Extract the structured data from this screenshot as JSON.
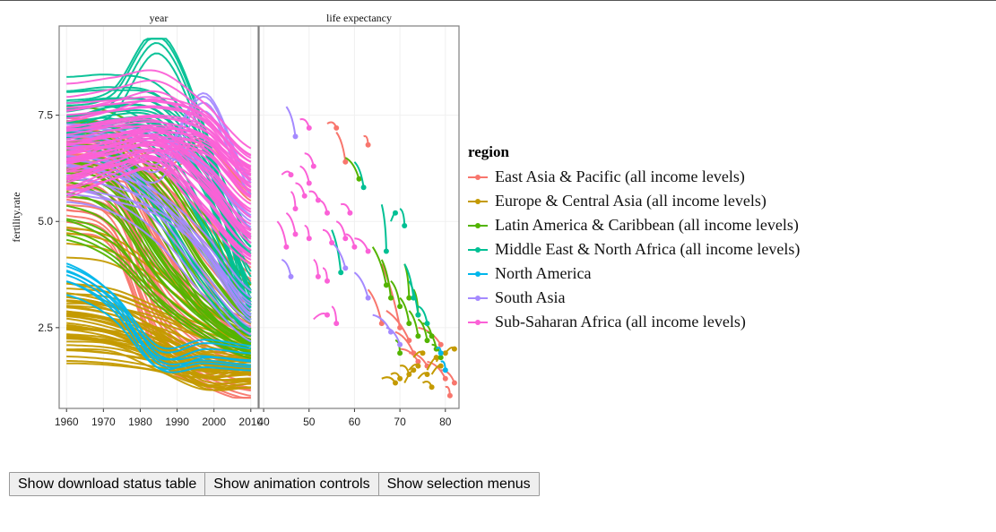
{
  "chart_data": {
    "type": "line",
    "ylabel": "fertility.rate",
    "y_ticks": [
      "2.5",
      "5.0",
      "7.5"
    ],
    "y_tick_values": [
      2.5,
      5.0,
      7.5
    ],
    "ylim": [
      0.6,
      9.6
    ],
    "grid": true,
    "legend_position": "right",
    "legend_title": "region",
    "panels": [
      {
        "name": "year",
        "xlabel": "",
        "xlim": [
          1958,
          2012
        ],
        "x_ticks": [
          "1960",
          "1970",
          "1980",
          "1990",
          "2000",
          "2010"
        ],
        "x_tick_values": [
          1960,
          1970,
          1980,
          1990,
          2000,
          2010
        ]
      },
      {
        "name": "life expectancy",
        "xlabel": "",
        "xlim": [
          39,
          83
        ],
        "x_ticks": [
          "40",
          "50",
          "60",
          "70",
          "80"
        ],
        "x_tick_values": [
          40,
          50,
          60,
          70,
          80
        ]
      }
    ],
    "series": [
      {
        "name": "East Asia & Pacific (all income levels)",
        "color": "#F8766D",
        "year_curves": [
          [
            6.2,
            5.8,
            3.0,
            1.9,
            1.6
          ],
          [
            6.8,
            6.5,
            4.6,
            2.9,
            2.2
          ],
          [
            5.5,
            5.0,
            2.6,
            1.6,
            1.2
          ],
          [
            7.0,
            6.8,
            5.5,
            3.8,
            2.8
          ],
          [
            6.0,
            6.2,
            5.8,
            4.5,
            3.5
          ],
          [
            6.5,
            6.0,
            3.5,
            2.4,
            1.9
          ],
          [
            5.8,
            5.5,
            4.2,
            3.0,
            2.5
          ],
          [
            6.9,
            6.6,
            6.0,
            5.0,
            3.8
          ],
          [
            7.2,
            7.0,
            6.2,
            6.8,
            5.6
          ],
          [
            5.0,
            4.6,
            2.0,
            1.3,
            0.9
          ]
        ],
        "life_points": [
          [
            56,
            7.1,
            58,
            6.4
          ],
          [
            62,
            7.0,
            63,
            6.8
          ],
          [
            66,
            4.0,
            70,
            2.5
          ],
          [
            67,
            2.9,
            72,
            2.2
          ],
          [
            69,
            2.4,
            73,
            1.9
          ],
          [
            70,
            2.0,
            74,
            1.7
          ],
          [
            72,
            1.9,
            76,
            1.6
          ],
          [
            76,
            1.7,
            80,
            1.3
          ],
          [
            79,
            1.5,
            82,
            1.2
          ],
          [
            80,
            1.1,
            81,
            0.9
          ],
          [
            63,
            3.4,
            66,
            2.6
          ],
          [
            54,
            7.3,
            56,
            7.2
          ],
          [
            74,
            2.5,
            79,
            2.1
          ]
        ]
      },
      {
        "name": "Europe & Central Asia (all income levels)",
        "color": "#C49A00",
        "year_curves": [
          [
            2.8,
            2.7,
            2.2,
            1.7,
            1.6
          ],
          [
            2.3,
            2.2,
            1.9,
            1.5,
            1.5
          ],
          [
            3.2,
            3.0,
            2.6,
            2.0,
            1.8
          ],
          [
            2.1,
            2.0,
            1.8,
            1.4,
            1.3
          ],
          [
            2.6,
            2.4,
            2.0,
            1.5,
            1.6
          ],
          [
            3.0,
            2.8,
            2.3,
            1.8,
            1.9
          ],
          [
            2.4,
            2.3,
            1.8,
            1.3,
            1.4
          ],
          [
            2.9,
            2.7,
            2.1,
            1.4,
            1.3
          ],
          [
            3.3,
            3.2,
            2.8,
            2.4,
            2.1
          ],
          [
            2.0,
            1.9,
            1.7,
            1.5,
            1.7
          ],
          [
            2.7,
            2.6,
            2.4,
            2.0,
            1.8
          ],
          [
            4.5,
            4.3,
            3.6,
            2.8,
            2.3
          ],
          [
            2.5,
            2.3,
            1.9,
            1.2,
            1.2
          ]
        ],
        "life_points": [
          [
            68,
            1.4,
            70,
            1.3
          ],
          [
            70,
            1.6,
            72,
            1.4
          ],
          [
            72,
            1.5,
            74,
            1.6
          ],
          [
            74,
            1.3,
            76,
            1.4
          ],
          [
            76,
            1.5,
            78,
            1.8
          ],
          [
            78,
            1.7,
            80,
            1.9
          ],
          [
            80,
            1.9,
            82,
            2.0
          ],
          [
            66,
            1.3,
            69,
            1.2
          ],
          [
            71,
            1.2,
            73,
            1.5
          ],
          [
            75,
            1.2,
            77,
            1.1
          ],
          [
            77,
            1.4,
            79,
            1.6
          ],
          [
            73,
            1.8,
            75,
            1.9
          ]
        ]
      },
      {
        "name": "Latin America & Caribbean (all income levels)",
        "color": "#53B400",
        "year_curves": [
          [
            6.8,
            6.6,
            5.0,
            3.2,
            2.3
          ],
          [
            6.2,
            5.9,
            4.2,
            2.8,
            2.1
          ],
          [
            7.0,
            6.9,
            6.0,
            4.4,
            3.0
          ],
          [
            5.5,
            5.0,
            3.5,
            2.6,
            2.0
          ],
          [
            6.5,
            6.4,
            5.5,
            3.8,
            2.6
          ],
          [
            4.8,
            4.3,
            3.2,
            2.4,
            1.9
          ],
          [
            7.3,
            7.2,
            6.5,
            4.9,
            3.3
          ],
          [
            6.0,
            5.6,
            4.0,
            2.9,
            2.2
          ]
        ],
        "life_points": [
          [
            58,
            6.5,
            61,
            6.0
          ],
          [
            64,
            4.4,
            67,
            3.5
          ],
          [
            66,
            4.1,
            68,
            3.2
          ],
          [
            68,
            3.6,
            70,
            3.0
          ],
          [
            70,
            3.2,
            72,
            2.6
          ],
          [
            72,
            2.9,
            74,
            2.3
          ],
          [
            74,
            2.7,
            76,
            2.2
          ],
          [
            76,
            2.4,
            78,
            2.0
          ],
          [
            71,
            4.0,
            72,
            3.2
          ],
          [
            73,
            3.4,
            74,
            2.8
          ],
          [
            69,
            2.2,
            70,
            1.9
          ],
          [
            77,
            2.1,
            79,
            1.8
          ],
          [
            75,
            2.6,
            77,
            2.3
          ]
        ]
      },
      {
        "name": "Middle East & North Africa (all income levels)",
        "color": "#00C094",
        "year_curves": [
          [
            7.5,
            7.8,
            9.2,
            7.0,
            3.2
          ],
          [
            7.0,
            7.2,
            7.1,
            5.8,
            3.0
          ],
          [
            7.3,
            7.4,
            6.8,
            5.0,
            2.8
          ],
          [
            7.6,
            7.7,
            7.6,
            6.5,
            3.6
          ],
          [
            6.8,
            6.5,
            5.2,
            3.5,
            2.3
          ],
          [
            7.2,
            7.5,
            7.4,
            6.0,
            4.3
          ],
          [
            8.0,
            8.1,
            7.9,
            6.6,
            4.6
          ]
        ],
        "life_points": [
          [
            70,
            5.3,
            71,
            4.9
          ],
          [
            68,
            5.0,
            69,
            5.2
          ],
          [
            71,
            4.0,
            73,
            3.2
          ],
          [
            72,
            3.6,
            74,
            2.8
          ],
          [
            66,
            5.4,
            67,
            4.3
          ],
          [
            60,
            6.4,
            62,
            5.8
          ],
          [
            55,
            4.8,
            57,
            3.8
          ],
          [
            74,
            3.0,
            76,
            2.6
          ]
        ]
      },
      {
        "name": "North America",
        "color": "#00B6EB",
        "year_curves": [
          [
            3.6,
            3.0,
            1.8,
            2.0,
            1.9
          ],
          [
            3.8,
            3.1,
            1.7,
            1.7,
            1.6
          ]
        ],
        "life_points": [
          [
            78,
            2.0,
            79,
            1.9
          ],
          [
            79,
            1.7,
            80,
            1.5
          ]
        ]
      },
      {
        "name": "South Asia",
        "color": "#A58AFF",
        "year_curves": [
          [
            6.8,
            6.7,
            6.2,
            7.8,
            5.8
          ],
          [
            6.5,
            6.3,
            5.5,
            4.3,
            2.8
          ],
          [
            6.0,
            5.8,
            5.4,
            4.5,
            3.2
          ],
          [
            5.9,
            5.6,
            4.8,
            3.5,
            2.4
          ],
          [
            7.0,
            7.0,
            6.8,
            6.2,
            5.0
          ]
        ],
        "life_points": [
          [
            45,
            7.7,
            47,
            7.0
          ],
          [
            55,
            4.5,
            58,
            3.9
          ],
          [
            60,
            3.8,
            63,
            3.2
          ],
          [
            64,
            2.8,
            68,
            2.4
          ],
          [
            44,
            4.1,
            46,
            3.7
          ],
          [
            67,
            2.5,
            70,
            2.1
          ]
        ]
      },
      {
        "name": "Sub-Saharan Africa (all income levels)",
        "color": "#FB61D7",
        "year_curves": [
          [
            6.5,
            6.6,
            6.9,
            6.8,
            5.9
          ],
          [
            7.0,
            7.2,
            7.3,
            7.0,
            6.2
          ],
          [
            6.8,
            7.0,
            7.1,
            6.5,
            5.4
          ],
          [
            6.2,
            6.5,
            6.8,
            6.1,
            5.0
          ],
          [
            7.5,
            7.6,
            7.7,
            7.4,
            6.4
          ],
          [
            6.6,
            6.8,
            7.0,
            6.0,
            4.7
          ],
          [
            6.4,
            6.7,
            6.6,
            5.5,
            4.3
          ],
          [
            7.2,
            7.4,
            7.5,
            7.2,
            6.0
          ],
          [
            5.8,
            6.2,
            6.4,
            5.2,
            4.1
          ],
          [
            6.9,
            7.0,
            7.0,
            6.8,
            5.7
          ],
          [
            7.8,
            8.0,
            8.2,
            7.5,
            6.5
          ],
          [
            6.0,
            6.3,
            6.5,
            5.8,
            4.5
          ]
        ],
        "life_points": [
          [
            48,
            7.4,
            50,
            7.2
          ],
          [
            49,
            6.6,
            51,
            6.3
          ],
          [
            48,
            6.3,
            50,
            5.9
          ],
          [
            47,
            5.9,
            49,
            5.6
          ],
          [
            50,
            5.7,
            52,
            5.5
          ],
          [
            52,
            5.5,
            54,
            5.2
          ],
          [
            45,
            5.2,
            47,
            4.7
          ],
          [
            49,
            4.9,
            50,
            4.6
          ],
          [
            53,
            4.8,
            55,
            4.5
          ],
          [
            56,
            5.0,
            58,
            4.6
          ],
          [
            58,
            4.7,
            60,
            4.4
          ],
          [
            44,
            6.1,
            46,
            6.1
          ],
          [
            46,
            5.7,
            47,
            5.3
          ],
          [
            55,
            3.0,
            56,
            2.6
          ],
          [
            51,
            4.1,
            52,
            3.7
          ],
          [
            53,
            3.9,
            54,
            3.6
          ],
          [
            51,
            2.7,
            54,
            2.8
          ],
          [
            57,
            5.4,
            59,
            5.2
          ],
          [
            60,
            4.6,
            63,
            4.3
          ],
          [
            43,
            5.0,
            45,
            4.4
          ]
        ]
      }
    ]
  },
  "buttons": {
    "download_status": "Show download status table",
    "animation_controls": "Show animation controls",
    "selection_menus": "Show selection menus"
  }
}
